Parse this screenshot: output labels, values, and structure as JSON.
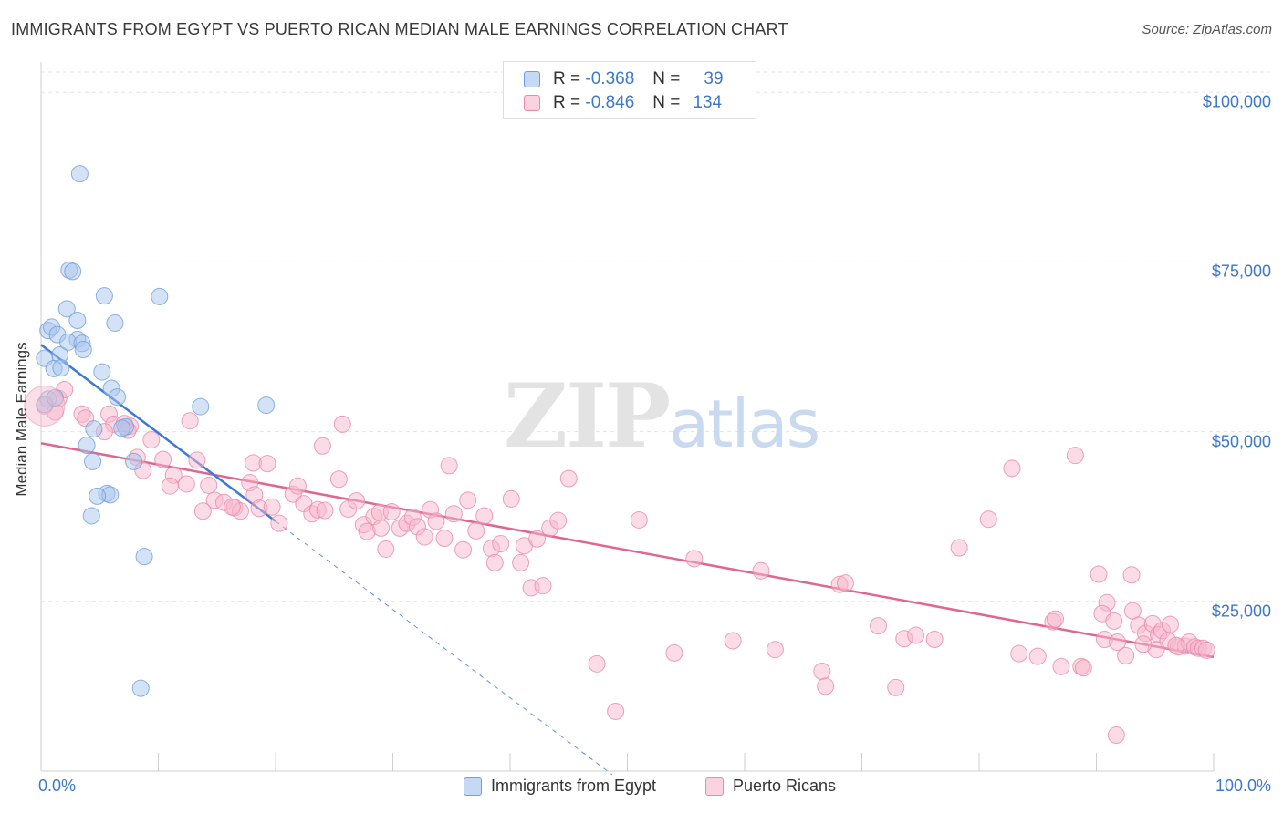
{
  "header": {
    "title": "IMMIGRANTS FROM EGYPT VS PUERTO RICAN MEDIAN MALE EARNINGS CORRELATION CHART",
    "source": "Source: ZipAtlas.com"
  },
  "watermark": {
    "zip": "ZIP",
    "atlas": "atlas"
  },
  "legend": {
    "rows": [
      {
        "r_label": "R =",
        "r_value": "-0.368",
        "n_label": "N =",
        "n_value": "39",
        "color": "#a9c6ee"
      },
      {
        "r_label": "R =",
        "r_value": "-0.846",
        "n_label": "N =",
        "n_value": "134",
        "color": "#f7b8cc"
      }
    ]
  },
  "bottom_legend": [
    {
      "label": "Immigrants from Egypt",
      "color": "#a9c6ee"
    },
    {
      "label": "Puerto Ricans",
      "color": "#f7b8cc"
    }
  ],
  "colors": {
    "blue_fill": "#a9c6ee",
    "blue_stroke": "#6f9fdc",
    "blue_line": "#3b78d8",
    "pink_fill": "#f7b8cc",
    "pink_stroke": "#e98aab",
    "pink_line": "#e0668f",
    "grid": "#e4e4e4",
    "tick_text": "#3d78c9"
  },
  "chart_data": {
    "type": "scatter",
    "title": "IMMIGRANTS FROM EGYPT VS PUERTO RICAN MEDIAN MALE EARNINGS CORRELATION CHART",
    "xlabel": "",
    "ylabel": "Median Male Earnings",
    "xlim": [
      0,
      100
    ],
    "ylim": [
      0,
      105000
    ],
    "x_tick_labels": [
      "0.0%",
      "100.0%"
    ],
    "y_ticks": [
      {
        "value": 25000,
        "label": "$25,000"
      },
      {
        "value": 50000,
        "label": "$50,000"
      },
      {
        "value": 75000,
        "label": "$75,000"
      },
      {
        "value": 100000,
        "label": "$100,000"
      }
    ],
    "grid": true,
    "legend_position": "top-center",
    "series": [
      {
        "name": "Immigrants from Egypt",
        "color": "#a9c6ee",
        "r": -0.368,
        "n": 39,
        "trend": {
          "x0": 0.0,
          "y0": 62800,
          "x1": 20.0,
          "y1": 36800,
          "dashed_to_x": 48.7
        },
        "points": [
          [
            3.3,
            88000
          ],
          [
            0.6,
            54800
          ],
          [
            0.3,
            54000
          ],
          [
            2.4,
            73800
          ],
          [
            2.7,
            73600
          ],
          [
            5.4,
            70000
          ],
          [
            10.1,
            69900
          ],
          [
            2.2,
            68100
          ],
          [
            3.1,
            66400
          ],
          [
            6.3,
            66000
          ],
          [
            0.6,
            64900
          ],
          [
            0.9,
            65400
          ],
          [
            1.4,
            64300
          ],
          [
            3.1,
            63600
          ],
          [
            2.3,
            63200
          ],
          [
            3.5,
            63000
          ],
          [
            3.6,
            62100
          ],
          [
            1.6,
            61300
          ],
          [
            0.3,
            60800
          ],
          [
            1.1,
            59300
          ],
          [
            1.7,
            59400
          ],
          [
            5.2,
            58800
          ],
          [
            6.0,
            56400
          ],
          [
            6.5,
            55100
          ],
          [
            1.2,
            55000
          ],
          [
            13.6,
            53700
          ],
          [
            19.2,
            53900
          ],
          [
            7.2,
            50700
          ],
          [
            4.5,
            50400
          ],
          [
            6.9,
            50500
          ],
          [
            3.9,
            48000
          ],
          [
            4.4,
            45600
          ],
          [
            7.9,
            45600
          ],
          [
            5.6,
            40900
          ],
          [
            5.9,
            40700
          ],
          [
            4.8,
            40500
          ],
          [
            4.3,
            37600
          ],
          [
            8.8,
            31600
          ],
          [
            8.5,
            12200
          ]
        ]
      },
      {
        "name": "Puerto Ricans",
        "color": "#f7b8cc",
        "r": -0.846,
        "n": 134,
        "trend": {
          "x0": 0.0,
          "y0": 48300,
          "x1": 100.0,
          "y1": 16800
        },
        "points": [
          [
            0.3,
            53800
          ],
          [
            1.5,
            54900
          ],
          [
            2.0,
            56200
          ],
          [
            1.2,
            52900
          ],
          [
            3.5,
            52600
          ],
          [
            3.8,
            52000
          ],
          [
            5.8,
            52600
          ],
          [
            6.2,
            51100
          ],
          [
            7.6,
            50800
          ],
          [
            7.4,
            50200
          ],
          [
            5.4,
            50000
          ],
          [
            7.1,
            51200
          ],
          [
            12.7,
            51600
          ],
          [
            9.4,
            48800
          ],
          [
            8.2,
            46200
          ],
          [
            10.4,
            45900
          ],
          [
            8.7,
            44300
          ],
          [
            11.3,
            43600
          ],
          [
            11.0,
            42000
          ],
          [
            12.4,
            42300
          ],
          [
            13.3,
            45800
          ],
          [
            14.3,
            42100
          ],
          [
            14.8,
            39900
          ],
          [
            15.6,
            39600
          ],
          [
            13.8,
            38300
          ],
          [
            16.5,
            38800
          ],
          [
            17.0,
            38300
          ],
          [
            16.3,
            38900
          ],
          [
            17.8,
            42500
          ],
          [
            18.2,
            40700
          ],
          [
            18.6,
            38700
          ],
          [
            18.1,
            45400
          ],
          [
            19.3,
            45300
          ],
          [
            19.7,
            38900
          ],
          [
            20.3,
            36500
          ],
          [
            21.5,
            40800
          ],
          [
            21.9,
            42000
          ],
          [
            22.4,
            39400
          ],
          [
            23.1,
            37900
          ],
          [
            23.6,
            38500
          ],
          [
            24.2,
            38400
          ],
          [
            24.0,
            47900
          ],
          [
            25.4,
            43000
          ],
          [
            25.7,
            51100
          ],
          [
            26.2,
            38600
          ],
          [
            26.9,
            39800
          ],
          [
            27.5,
            36300
          ],
          [
            27.8,
            35300
          ],
          [
            28.4,
            37500
          ],
          [
            28.9,
            38100
          ],
          [
            29.0,
            35800
          ],
          [
            29.4,
            32700
          ],
          [
            29.9,
            38200
          ],
          [
            30.6,
            35800
          ],
          [
            31.2,
            36500
          ],
          [
            31.7,
            37400
          ],
          [
            32.1,
            36000
          ],
          [
            32.7,
            34500
          ],
          [
            33.2,
            38500
          ],
          [
            33.7,
            36800
          ],
          [
            34.4,
            34300
          ],
          [
            34.8,
            45000
          ],
          [
            35.2,
            37900
          ],
          [
            36.0,
            32600
          ],
          [
            36.4,
            39900
          ],
          [
            37.1,
            35400
          ],
          [
            37.8,
            37600
          ],
          [
            38.4,
            32800
          ],
          [
            38.7,
            30700
          ],
          [
            39.2,
            33500
          ],
          [
            40.1,
            40100
          ],
          [
            40.9,
            30700
          ],
          [
            41.2,
            33200
          ],
          [
            41.8,
            27000
          ],
          [
            42.3,
            34200
          ],
          [
            42.8,
            27300
          ],
          [
            43.4,
            35800
          ],
          [
            44.1,
            36900
          ],
          [
            45.0,
            43100
          ],
          [
            47.4,
            15800
          ],
          [
            49.0,
            8800
          ],
          [
            51.0,
            37000
          ],
          [
            54.0,
            17400
          ],
          [
            55.7,
            31300
          ],
          [
            61.4,
            29500
          ],
          [
            66.6,
            14700
          ],
          [
            66.9,
            12500
          ],
          [
            68.1,
            27500
          ],
          [
            68.6,
            27700
          ],
          [
            71.4,
            21400
          ],
          [
            72.9,
            12300
          ],
          [
            73.6,
            19500
          ],
          [
            74.6,
            20000
          ],
          [
            76.2,
            19400
          ],
          [
            78.3,
            32900
          ],
          [
            80.8,
            37100
          ],
          [
            83.4,
            17300
          ],
          [
            82.8,
            44600
          ],
          [
            86.3,
            22000
          ],
          [
            86.5,
            22400
          ],
          [
            87.0,
            15400
          ],
          [
            88.2,
            46500
          ],
          [
            88.7,
            15400
          ],
          [
            88.9,
            15200
          ],
          [
            90.2,
            29000
          ],
          [
            90.9,
            24800
          ],
          [
            90.5,
            23200
          ],
          [
            90.7,
            19400
          ],
          [
            91.5,
            22100
          ],
          [
            91.8,
            19000
          ],
          [
            91.7,
            5300
          ],
          [
            92.5,
            17000
          ],
          [
            93.1,
            23600
          ],
          [
            93.0,
            28900
          ],
          [
            93.6,
            21500
          ],
          [
            94.2,
            20300
          ],
          [
            94.8,
            21700
          ],
          [
            95.3,
            20100
          ],
          [
            95.6,
            20700
          ],
          [
            96.3,
            21600
          ],
          [
            96.1,
            19200
          ],
          [
            97.0,
            18300
          ],
          [
            97.6,
            18400
          ],
          [
            97.9,
            19000
          ],
          [
            98.4,
            18300
          ],
          [
            98.7,
            18100
          ],
          [
            99.1,
            18100
          ],
          [
            99.4,
            17800
          ],
          [
            96.8,
            18500
          ],
          [
            95.1,
            17900
          ],
          [
            94.0,
            18700
          ],
          [
            85.0,
            16900
          ],
          [
            62.6,
            17900
          ],
          [
            59.0,
            19200
          ]
        ]
      }
    ]
  }
}
